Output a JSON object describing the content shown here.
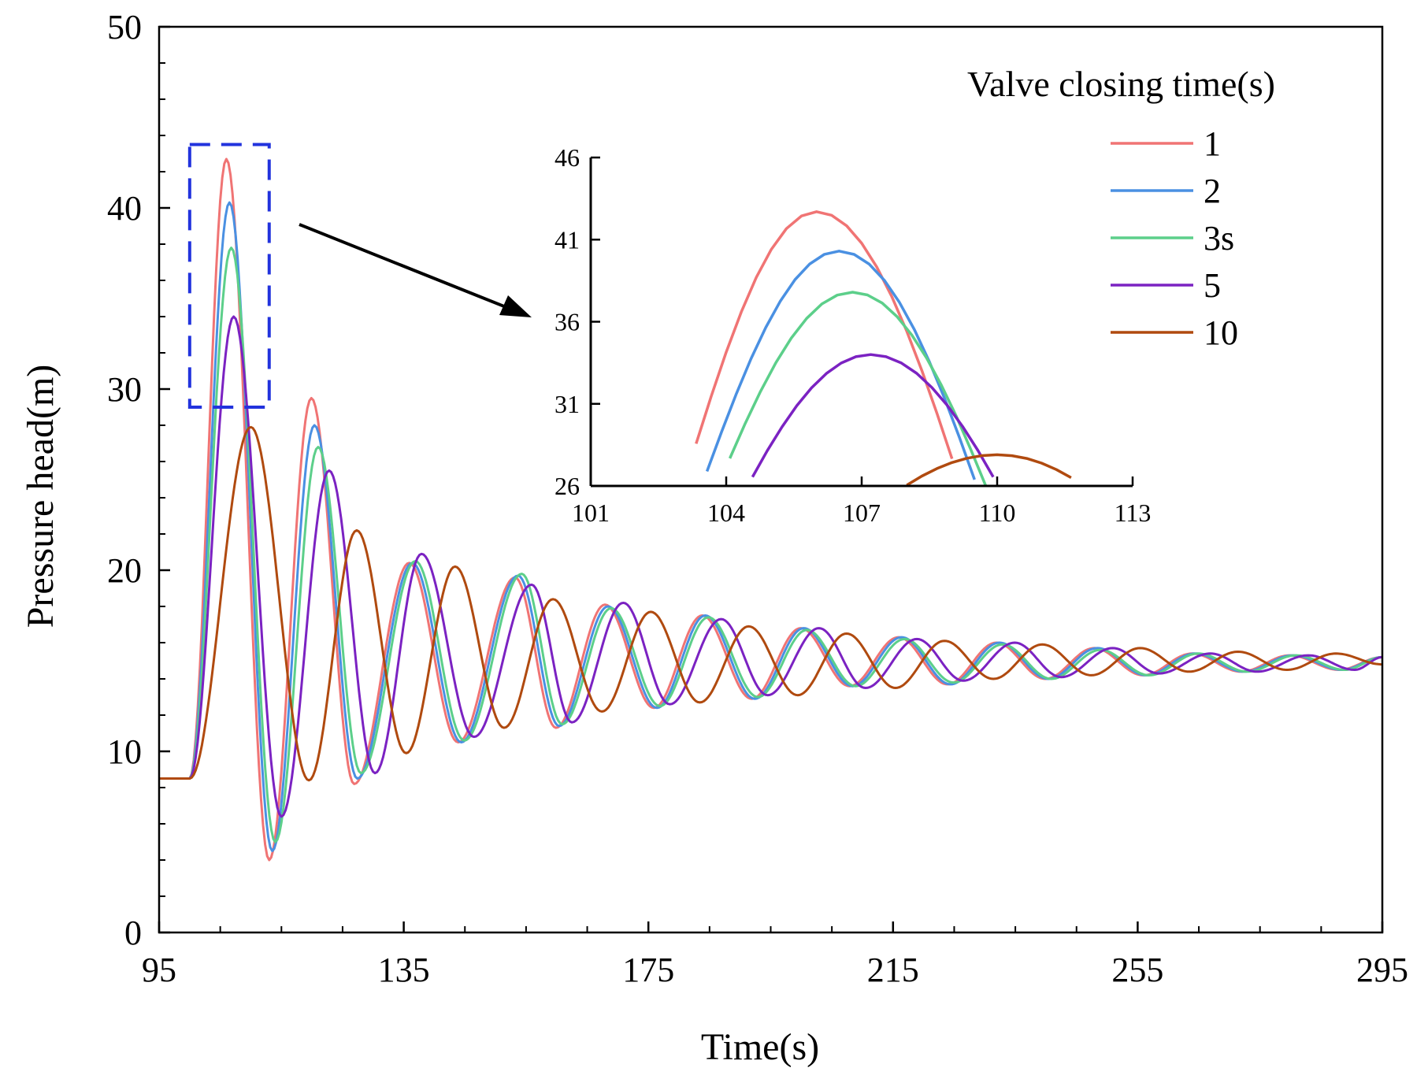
{
  "chart_data": {
    "type": "line",
    "main": {
      "xlabel": "Time(s)",
      "ylabel": "Pressure head(m)",
      "xlim": [
        95,
        295
      ],
      "ylim": [
        0,
        50
      ],
      "xticks": [
        "95",
        "135",
        "175",
        "215",
        "255",
        "295"
      ],
      "yticks": [
        "0",
        "10",
        "20",
        "30",
        "40",
        "50"
      ]
    },
    "inset": {
      "xlim": [
        101,
        113
      ],
      "ylim": [
        26,
        46
      ],
      "xticks": [
        "101",
        "104",
        "107",
        "110",
        "113"
      ],
      "yticks": [
        "26",
        "31",
        "36",
        "41",
        "46"
      ],
      "zoom_region": {
        "x": [
          100,
          113
        ],
        "y": [
          29,
          43.5
        ]
      }
    },
    "legend": {
      "title": "Valve closing time(s)",
      "placement": "top-right"
    },
    "series": [
      {
        "name": "1",
        "color": "#f07474",
        "peaks": [
          [
            106.0,
            42.7
          ],
          [
            119.9,
            29.5
          ],
          [
            135.9,
            20.4
          ],
          [
            153.2,
            19.6
          ],
          [
            167.9,
            18.1
          ],
          [
            183.8,
            17.5
          ],
          [
            199.9,
            16.8
          ],
          [
            215.9,
            16.3
          ],
          [
            231.9,
            16.0
          ],
          [
            247.9,
            15.7
          ],
          [
            263.9,
            15.4
          ],
          [
            279.9,
            15.3
          ],
          [
            295,
            15.2
          ]
        ],
        "troughs": [
          [
            113.0,
            4.0
          ],
          [
            126.9,
            8.2
          ],
          [
            143.9,
            10.5
          ],
          [
            159.9,
            11.3
          ],
          [
            175.9,
            12.4
          ],
          [
            191.9,
            12.9
          ],
          [
            207.9,
            13.6
          ],
          [
            223.9,
            13.7
          ],
          [
            239.9,
            14.0
          ],
          [
            255.9,
            14.2
          ],
          [
            271.9,
            14.4
          ],
          [
            287.9,
            14.5
          ]
        ]
      },
      {
        "name": "2",
        "color": "#4a90e2",
        "peaks": [
          [
            106.5,
            40.3
          ],
          [
            120.4,
            28.0
          ],
          [
            136.4,
            20.4
          ],
          [
            153.7,
            19.7
          ],
          [
            168.4,
            18.0
          ],
          [
            184.3,
            17.5
          ],
          [
            200.4,
            16.8
          ],
          [
            216.4,
            16.3
          ],
          [
            232.4,
            16.0
          ],
          [
            248.4,
            15.7
          ],
          [
            264.4,
            15.4
          ],
          [
            280.4,
            15.3
          ],
          [
            295,
            15.2
          ]
        ],
        "troughs": [
          [
            113.5,
            4.5
          ],
          [
            127.4,
            8.5
          ],
          [
            144.4,
            10.5
          ],
          [
            160.4,
            11.4
          ],
          [
            176.4,
            12.4
          ],
          [
            192.4,
            12.9
          ],
          [
            208.4,
            13.6
          ],
          [
            224.4,
            13.7
          ],
          [
            240.4,
            14.0
          ],
          [
            256.4,
            14.2
          ],
          [
            272.4,
            14.4
          ],
          [
            288.4,
            14.5
          ]
        ]
      },
      {
        "name": "3s",
        "color": "#5ccf8a",
        "peaks": [
          [
            106.8,
            37.8
          ],
          [
            121.0,
            26.8
          ],
          [
            136.9,
            20.5
          ],
          [
            154.3,
            19.8
          ],
          [
            168.9,
            17.9
          ],
          [
            184.8,
            17.4
          ],
          [
            200.9,
            16.7
          ],
          [
            216.9,
            16.2
          ],
          [
            232.9,
            15.9
          ],
          [
            248.9,
            15.6
          ],
          [
            264.9,
            15.4
          ],
          [
            280.9,
            15.3
          ],
          [
            295,
            15.2
          ]
        ],
        "troughs": [
          [
            114.0,
            5.0
          ],
          [
            128.0,
            8.8
          ],
          [
            144.9,
            10.6
          ],
          [
            160.9,
            11.5
          ],
          [
            176.9,
            12.5
          ],
          [
            192.9,
            13.0
          ],
          [
            208.9,
            13.6
          ],
          [
            224.9,
            13.8
          ],
          [
            240.9,
            14.0
          ],
          [
            256.9,
            14.2
          ],
          [
            272.9,
            14.4
          ],
          [
            288.9,
            14.5
          ]
        ]
      },
      {
        "name": "5",
        "color": "#7b22c2",
        "peaks": [
          [
            107.2,
            34.0
          ],
          [
            122.8,
            25.5
          ],
          [
            137.9,
            20.9
          ],
          [
            155.9,
            19.2
          ],
          [
            170.9,
            18.2
          ],
          [
            186.9,
            17.3
          ],
          [
            202.9,
            16.8
          ],
          [
            218.9,
            16.2
          ],
          [
            234.9,
            16.0
          ],
          [
            250.9,
            15.7
          ],
          [
            266.9,
            15.4
          ],
          [
            282.9,
            15.3
          ],
          [
            295,
            15.2
          ]
        ],
        "troughs": [
          [
            115.0,
            6.4
          ],
          [
            130.3,
            8.8
          ],
          [
            146.5,
            10.8
          ],
          [
            162.5,
            11.6
          ],
          [
            178.5,
            12.6
          ],
          [
            194.5,
            13.1
          ],
          [
            210.5,
            13.5
          ],
          [
            226.5,
            13.9
          ],
          [
            242.5,
            14.1
          ],
          [
            258.5,
            14.3
          ],
          [
            274.5,
            14.4
          ],
          [
            290.5,
            14.5
          ]
        ]
      },
      {
        "name": "10",
        "color": "#b04a0f",
        "peaks": [
          [
            110.0,
            27.9
          ],
          [
            127.3,
            22.2
          ],
          [
            143.4,
            20.2
          ],
          [
            159.4,
            18.4
          ],
          [
            175.4,
            17.7
          ],
          [
            191.4,
            16.9
          ],
          [
            207.4,
            16.5
          ],
          [
            223.4,
            16.1
          ],
          [
            239.4,
            15.9
          ],
          [
            255.4,
            15.7
          ],
          [
            271.4,
            15.5
          ],
          [
            287.4,
            15.4
          ]
        ],
        "troughs": [
          [
            119.5,
            8.4
          ],
          [
            135.4,
            9.9
          ],
          [
            151.4,
            11.3
          ],
          [
            167.4,
            12.2
          ],
          [
            183.4,
            12.7
          ],
          [
            199.4,
            13.1
          ],
          [
            215.4,
            13.5
          ],
          [
            231.4,
            14.0
          ],
          [
            247.4,
            14.2
          ],
          [
            263.4,
            14.4
          ],
          [
            279.4,
            14.5
          ],
          [
            295,
            14.8
          ]
        ]
      }
    ]
  }
}
